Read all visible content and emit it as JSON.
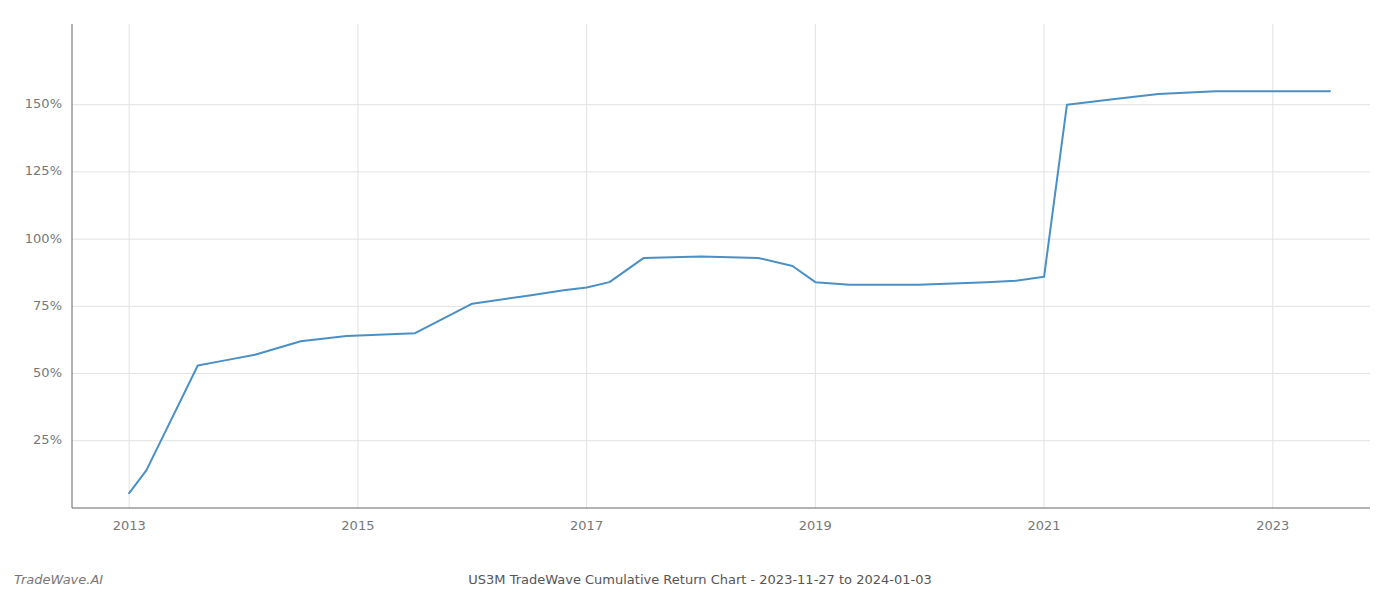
{
  "chart_data": {
    "type": "line",
    "title": "US3M TradeWave Cumulative Return Chart - 2023-11-27 to 2024-01-03",
    "annotations": [
      "TradeWave.AI"
    ],
    "color": "#4a90c4",
    "grid": true,
    "x": [
      2013.0,
      2013.15,
      2013.6,
      2013.85,
      2014.1,
      2014.5,
      2014.9,
      2015.5,
      2016.0,
      2016.5,
      2016.8,
      2017.0,
      2017.2,
      2017.5,
      2018.0,
      2018.5,
      2018.8,
      2019.0,
      2019.3,
      2019.6,
      2019.9,
      2020.2,
      2020.5,
      2020.75,
      2021.0,
      2021.2,
      2021.6,
      2022.0,
      2022.5,
      2023.0,
      2023.5
    ],
    "values": [
      5.5,
      14,
      53,
      55,
      57,
      62,
      64,
      65,
      76,
      79,
      81,
      82,
      84,
      93,
      93.5,
      93,
      90,
      84,
      83,
      83,
      83,
      83.5,
      84,
      84.5,
      86,
      150,
      152,
      154,
      155,
      155,
      155
    ],
    "xlim": [
      2012.5,
      2023.85
    ],
    "ylim": [
      0,
      180
    ],
    "xticks": [
      2013,
      2015,
      2017,
      2019,
      2021,
      2023
    ],
    "yticks": [
      {
        "value": 25,
        "label": "25%"
      },
      {
        "value": 50,
        "label": "50%"
      },
      {
        "value": 75,
        "label": "75%"
      },
      {
        "value": 100,
        "label": "100%"
      },
      {
        "value": 125,
        "label": "125%"
      },
      {
        "value": 150,
        "label": "150%"
      }
    ]
  }
}
